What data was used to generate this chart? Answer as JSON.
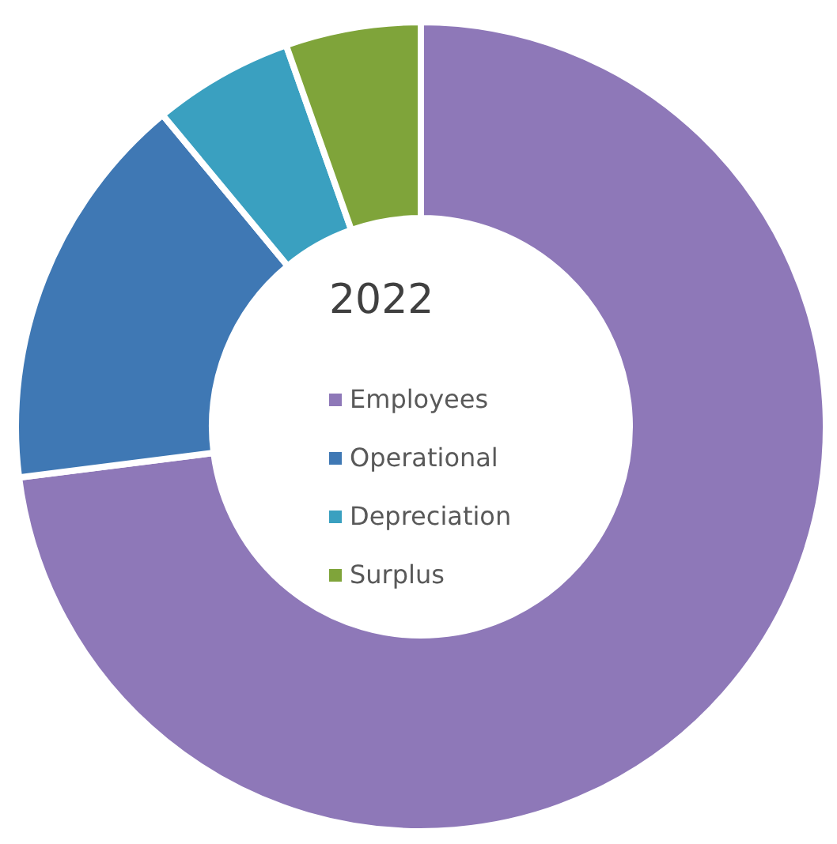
{
  "chart_data": {
    "type": "donut",
    "title": "2022",
    "categories": [
      "Employees",
      "Operational",
      "Depreciation",
      "Surplus"
    ],
    "values": [
      73,
      16,
      5.6,
      5.4
    ],
    "colors": [
      "#8e78b8",
      "#3f78b4",
      "#3aa0c0",
      "#7fa43a"
    ],
    "legend": "center"
  }
}
